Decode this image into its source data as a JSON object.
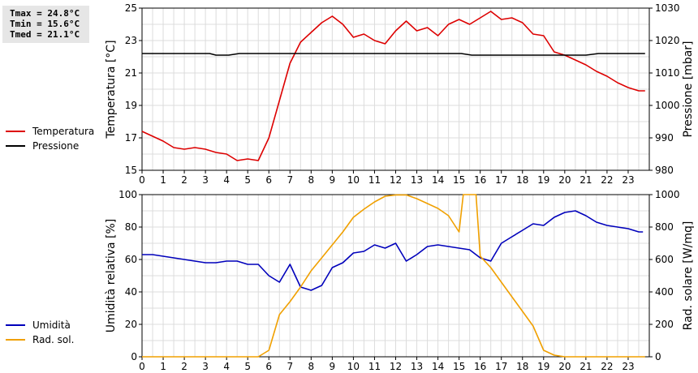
{
  "stats": {
    "tmax": "Tmax = 24.8°C",
    "tmin": "Tmin = 15.6°C",
    "tmed": "Tmed = 21.1°C"
  },
  "legend_top": [
    {
      "label": "Temperatura",
      "color": "#dd0000"
    },
    {
      "label": "Pressione",
      "color": "#000000"
    }
  ],
  "legend_bottom": [
    {
      "label": "Umidità",
      "color": "#0000bb"
    },
    {
      "label": "Rad. sol.",
      "color": "#f0a000"
    }
  ],
  "chart_data": [
    {
      "type": "line",
      "xlim": [
        0,
        24
      ],
      "xticks": [
        0,
        1,
        2,
        3,
        4,
        5,
        6,
        7,
        8,
        9,
        10,
        11,
        12,
        13,
        14,
        15,
        16,
        17,
        18,
        19,
        20,
        21,
        22,
        23
      ],
      "ylabel_left": "Temperatura [°C]",
      "ylim_left": [
        15,
        25
      ],
      "yticks_left": [
        15,
        17,
        19,
        21,
        23,
        25
      ],
      "ylabel_right": "Pressione [mbar]",
      "ylim_right": [
        980,
        1030
      ],
      "yticks_right": [
        980,
        990,
        1000,
        1010,
        1020,
        1030
      ],
      "grid": true,
      "series": [
        {
          "name": "Temperatura",
          "axis": "left",
          "color": "#dd0000",
          "points": [
            [
              0,
              17.4
            ],
            [
              0.5,
              17.1
            ],
            [
              1,
              16.8
            ],
            [
              1.5,
              16.4
            ],
            [
              2,
              16.3
            ],
            [
              2.5,
              16.4
            ],
            [
              3,
              16.3
            ],
            [
              3.5,
              16.1
            ],
            [
              4,
              16.0
            ],
            [
              4.5,
              15.6
            ],
            [
              5,
              15.7
            ],
            [
              5.5,
              15.6
            ],
            [
              6,
              17.0
            ],
            [
              6.5,
              19.3
            ],
            [
              7,
              21.6
            ],
            [
              7.5,
              22.9
            ],
            [
              8,
              23.5
            ],
            [
              8.5,
              24.1
            ],
            [
              9,
              24.5
            ],
            [
              9.5,
              24.0
            ],
            [
              10,
              23.2
            ],
            [
              10.5,
              23.4
            ],
            [
              11,
              23.0
            ],
            [
              11.5,
              22.8
            ],
            [
              12,
              23.6
            ],
            [
              12.5,
              24.2
            ],
            [
              13,
              23.6
            ],
            [
              13.5,
              23.8
            ],
            [
              14,
              23.3
            ],
            [
              14.5,
              24.0
            ],
            [
              15,
              24.3
            ],
            [
              15.5,
              24.0
            ],
            [
              16,
              24.4
            ],
            [
              16.5,
              24.8
            ],
            [
              17,
              24.3
            ],
            [
              17.5,
              24.4
            ],
            [
              18,
              24.1
            ],
            [
              18.5,
              23.4
            ],
            [
              19,
              23.3
            ],
            [
              19.5,
              22.3
            ],
            [
              20,
              22.1
            ],
            [
              20.5,
              21.8
            ],
            [
              21,
              21.5
            ],
            [
              21.5,
              21.1
            ],
            [
              22,
              20.8
            ],
            [
              22.5,
              20.4
            ],
            [
              23,
              20.1
            ],
            [
              23.5,
              19.9
            ],
            [
              23.8,
              19.9
            ]
          ]
        },
        {
          "name": "Pressione",
          "axis": "right",
          "color": "#000000",
          "points": [
            [
              0,
              1016
            ],
            [
              3.2,
              1016
            ],
            [
              3.5,
              1015.5
            ],
            [
              4.1,
              1015.5
            ],
            [
              4.6,
              1016
            ],
            [
              15.1,
              1016
            ],
            [
              15.6,
              1015.5
            ],
            [
              21,
              1015.5
            ],
            [
              21.6,
              1016
            ],
            [
              23.8,
              1016
            ]
          ]
        }
      ]
    },
    {
      "type": "line",
      "xlim": [
        0,
        24
      ],
      "xticks": [
        0,
        1,
        2,
        3,
        4,
        5,
        6,
        7,
        8,
        9,
        10,
        11,
        12,
        13,
        14,
        15,
        16,
        17,
        18,
        19,
        20,
        21,
        22,
        23
      ],
      "ylabel_left": "Umidità relativa [%]",
      "ylim_left": [
        0,
        100
      ],
      "yticks_left": [
        0,
        20,
        40,
        60,
        80,
        100
      ],
      "ylabel_right": "Rad. solare [W/mq]",
      "ylim_right": [
        0,
        1000
      ],
      "yticks_right": [
        0,
        200,
        400,
        600,
        800,
        1000
      ],
      "grid": true,
      "series": [
        {
          "name": "Umidità",
          "axis": "left",
          "color": "#0000bb",
          "points": [
            [
              0,
              63
            ],
            [
              0.5,
              63
            ],
            [
              1,
              62
            ],
            [
              1.5,
              61
            ],
            [
              2,
              60
            ],
            [
              2.5,
              59
            ],
            [
              3,
              58
            ],
            [
              3.5,
              58
            ],
            [
              4,
              59
            ],
            [
              4.5,
              59
            ],
            [
              5,
              57
            ],
            [
              5.5,
              57
            ],
            [
              6,
              50
            ],
            [
              6.5,
              46
            ],
            [
              7,
              57
            ],
            [
              7.5,
              43
            ],
            [
              8,
              41
            ],
            [
              8.5,
              44
            ],
            [
              9,
              55
            ],
            [
              9.5,
              58
            ],
            [
              10,
              64
            ],
            [
              10.5,
              65
            ],
            [
              11,
              69
            ],
            [
              11.5,
              67
            ],
            [
              12,
              70
            ],
            [
              12.5,
              59
            ],
            [
              13,
              63
            ],
            [
              13.5,
              68
            ],
            [
              14,
              69
            ],
            [
              14.5,
              68
            ],
            [
              15,
              67
            ],
            [
              15.5,
              66
            ],
            [
              16,
              61
            ],
            [
              16.5,
              59
            ],
            [
              17,
              70
            ],
            [
              17.5,
              74
            ],
            [
              18,
              78
            ],
            [
              18.5,
              82
            ],
            [
              19,
              81
            ],
            [
              19.5,
              86
            ],
            [
              20,
              89
            ],
            [
              20.5,
              90
            ],
            [
              21,
              87
            ],
            [
              21.5,
              83
            ],
            [
              22,
              81
            ],
            [
              22.5,
              80
            ],
            [
              23,
              79
            ],
            [
              23.5,
              77
            ],
            [
              23.7,
              77
            ]
          ]
        },
        {
          "name": "Rad. sol.",
          "axis": "right",
          "color": "#f0a000",
          "points": [
            [
              0,
              0
            ],
            [
              5.5,
              0
            ],
            [
              6,
              40
            ],
            [
              6.5,
              260
            ],
            [
              7,
              340
            ],
            [
              7.5,
              430
            ],
            [
              8,
              530
            ],
            [
              8.5,
              610
            ],
            [
              9,
              690
            ],
            [
              9.5,
              770
            ],
            [
              10,
              860
            ],
            [
              10.5,
              910
            ],
            [
              11,
              955
            ],
            [
              11.5,
              990
            ],
            [
              12,
              998
            ],
            [
              12.5,
              998
            ],
            [
              13,
              975
            ],
            [
              13.5,
              945
            ],
            [
              14,
              915
            ],
            [
              14.5,
              870
            ],
            [
              15,
              770
            ],
            [
              15.2,
              1000
            ],
            [
              15.8,
              1000
            ],
            [
              16,
              620
            ],
            [
              16.5,
              550
            ],
            [
              17,
              460
            ],
            [
              17.5,
              370
            ],
            [
              18,
              280
            ],
            [
              18.5,
              190
            ],
            [
              19,
              40
            ],
            [
              19.5,
              10
            ],
            [
              20,
              0
            ],
            [
              23.8,
              0
            ]
          ]
        }
      ]
    }
  ]
}
